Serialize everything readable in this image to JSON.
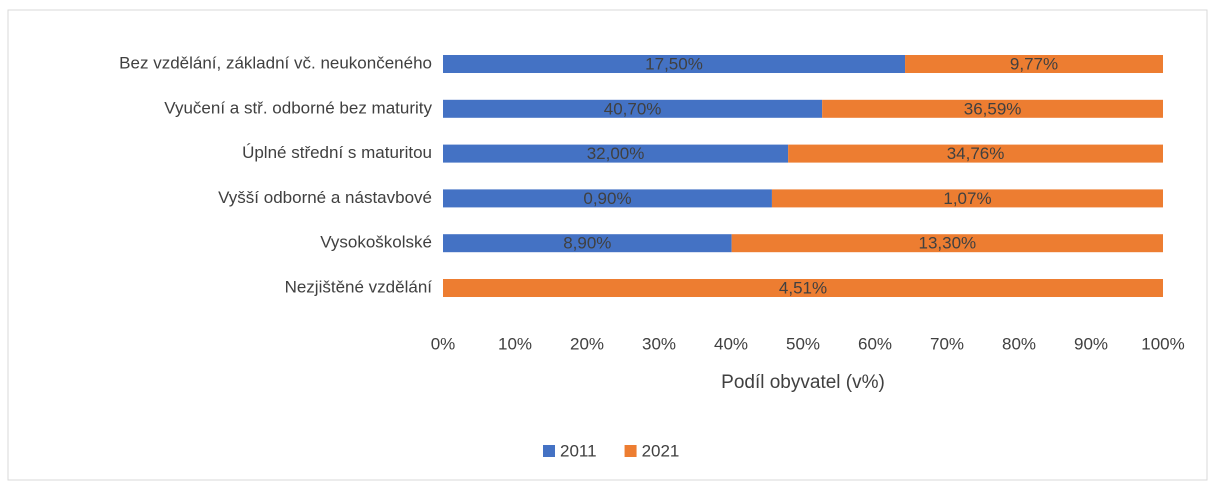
{
  "chart_data": {
    "type": "bar",
    "orientation": "horizontal",
    "stacking": "percent",
    "categories": [
      "Bez vzdělání, základní vč. neukončeného",
      "Vyučení a stř. odborné bez maturity",
      "Úplné střední s maturitou",
      "Vyšší odborné a nástavbové",
      "Vysokoškolské",
      "Nezjištěné vzdělání"
    ],
    "series": [
      {
        "name": "2011",
        "color": "#4472c4",
        "values": [
          17.5,
          40.7,
          32.0,
          0.9,
          8.9,
          null
        ],
        "value_labels": [
          "17,50%",
          "40,70%",
          "32,00%",
          "0,90%",
          "8,90%",
          null
        ]
      },
      {
        "name": "2021",
        "color": "#ed7d31",
        "values": [
          9.77,
          36.59,
          34.76,
          1.07,
          13.3,
          4.51
        ],
        "value_labels": [
          "9,77%",
          "36,59%",
          "34,76%",
          "1,07%",
          "13,30%",
          "4,51%"
        ]
      }
    ],
    "xlabel": "Podíl obyvatel (v%)",
    "xlim": [
      0,
      100
    ],
    "xticks": [
      {
        "value": 0,
        "label": "0%"
      },
      {
        "value": 10,
        "label": "10%"
      },
      {
        "value": 20,
        "label": "20%"
      },
      {
        "value": 30,
        "label": "30%"
      },
      {
        "value": 40,
        "label": "40%"
      },
      {
        "value": 50,
        "label": "50%"
      },
      {
        "value": 60,
        "label": "60%"
      },
      {
        "value": 70,
        "label": "70%"
      },
      {
        "value": 80,
        "label": "80%"
      },
      {
        "value": 90,
        "label": "90%"
      },
      {
        "value": 100,
        "label": "100%"
      }
    ],
    "grid": false,
    "legend": "bottom"
  }
}
